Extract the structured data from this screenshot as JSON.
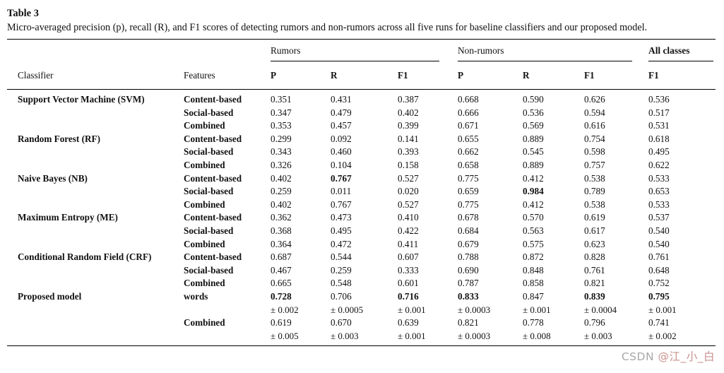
{
  "caption": {
    "label": "Table 3",
    "text": "Micro-averaged precision (p), recall (R), and F1 scores of detecting rumors and non-rumors across all five runs for baseline classifiers and our proposed model."
  },
  "table": {
    "header": {
      "classifier": "Classifier",
      "features": "Features",
      "groups": [
        {
          "label": "Rumors",
          "cols": [
            "P",
            "R",
            "F1"
          ]
        },
        {
          "label": "Non-rumors",
          "cols": [
            "P",
            "R",
            "F1"
          ]
        },
        {
          "label": "All classes",
          "cols": [
            "F1"
          ]
        }
      ]
    },
    "rows": [
      {
        "classifier": "Support Vector Machine (SVM)",
        "features": "Content-based",
        "values": [
          "0.351",
          "0.431",
          "0.387",
          "0.668",
          "0.590",
          "0.626",
          "0.536"
        ]
      },
      {
        "classifier": "",
        "features": "Social-based",
        "values": [
          "0.347",
          "0.479",
          "0.402",
          "0.666",
          "0.536",
          "0.594",
          "0.517"
        ]
      },
      {
        "classifier": "",
        "features": "Combined",
        "values": [
          "0.353",
          "0.457",
          "0.399",
          "0.671",
          "0.569",
          "0.616",
          "0.531"
        ]
      },
      {
        "classifier": "Random Forest (RF)",
        "features": "Content-based",
        "values": [
          "0.299",
          "0.092",
          "0.141",
          "0.655",
          "0.889",
          "0.754",
          "0.618"
        ]
      },
      {
        "classifier": "",
        "features": "Social-based",
        "values": [
          "0.343",
          "0.460",
          "0.393",
          "0.662",
          "0.545",
          "0.598",
          "0.495"
        ]
      },
      {
        "classifier": "",
        "features": "Combined",
        "values": [
          "0.326",
          "0.104",
          "0.158",
          "0.658",
          "0.889",
          "0.757",
          "0.622"
        ]
      },
      {
        "classifier": "Naive Bayes (NB)",
        "features": "Content-based",
        "values": [
          "0.402",
          "0.767",
          "0.527",
          "0.775",
          "0.412",
          "0.538",
          "0.533"
        ],
        "bold": [
          1
        ]
      },
      {
        "classifier": "",
        "features": "Social-based",
        "values": [
          "0.259",
          "0.011",
          "0.020",
          "0.659",
          "0.984",
          "0.789",
          "0.653"
        ],
        "bold": [
          4
        ]
      },
      {
        "classifier": "",
        "features": "Combined",
        "values": [
          "0.402",
          "0.767",
          "0.527",
          "0.775",
          "0.412",
          "0.538",
          "0.533"
        ]
      },
      {
        "classifier": "Maximum Entropy (ME)",
        "features": "Content-based",
        "values": [
          "0.362",
          "0.473",
          "0.410",
          "0.678",
          "0.570",
          "0.619",
          "0.537"
        ]
      },
      {
        "classifier": "",
        "features": "Social-based",
        "values": [
          "0.368",
          "0.495",
          "0.422",
          "0.684",
          "0.563",
          "0.617",
          "0.540"
        ]
      },
      {
        "classifier": "",
        "features": "Combined",
        "values": [
          "0.364",
          "0.472",
          "0.411",
          "0.679",
          "0.575",
          "0.623",
          "0.540"
        ]
      },
      {
        "classifier": "Conditional Random Field (CRF)",
        "features": "Content-based",
        "values": [
          "0.687",
          "0.544",
          "0.607",
          "0.788",
          "0.872",
          "0.828",
          "0.761"
        ]
      },
      {
        "classifier": "",
        "features": "Social-based",
        "values": [
          "0.467",
          "0.259",
          "0.333",
          "0.690",
          "0.848",
          "0.761",
          "0.648"
        ]
      },
      {
        "classifier": "",
        "features": "Combined",
        "values": [
          "0.665",
          "0.548",
          "0.601",
          "0.787",
          "0.858",
          "0.821",
          "0.752"
        ]
      },
      {
        "classifier": "Proposed model",
        "features": "words",
        "values": [
          "0.728",
          "0.706",
          "0.716",
          "0.833",
          "0.847",
          "0.839",
          "0.795"
        ],
        "bold": [
          0,
          2,
          3,
          5,
          6
        ]
      },
      {
        "classifier": "",
        "features": "",
        "values": [
          "± 0.002",
          "± 0.0005",
          "± 0.001",
          "± 0.0003",
          "± 0.001",
          "± 0.0004",
          "± 0.001"
        ],
        "pm": true
      },
      {
        "classifier": "",
        "features": "Combined",
        "values": [
          "0.619",
          "0.670",
          "0.639",
          "0.821",
          "0.778",
          "0.796",
          "0.741"
        ]
      },
      {
        "classifier": "",
        "features": "",
        "values": [
          "± 0.005",
          "± 0.003",
          "± 0.001",
          "± 0.0003",
          "± 0.008",
          "± 0.003",
          "± 0.002"
        ],
        "pm": true
      }
    ]
  },
  "watermark": {
    "prefix": "CSDN ",
    "handle": "@江_小_白",
    "prefix_color": "#a8a8a8",
    "handle_color": "#c9918b"
  }
}
